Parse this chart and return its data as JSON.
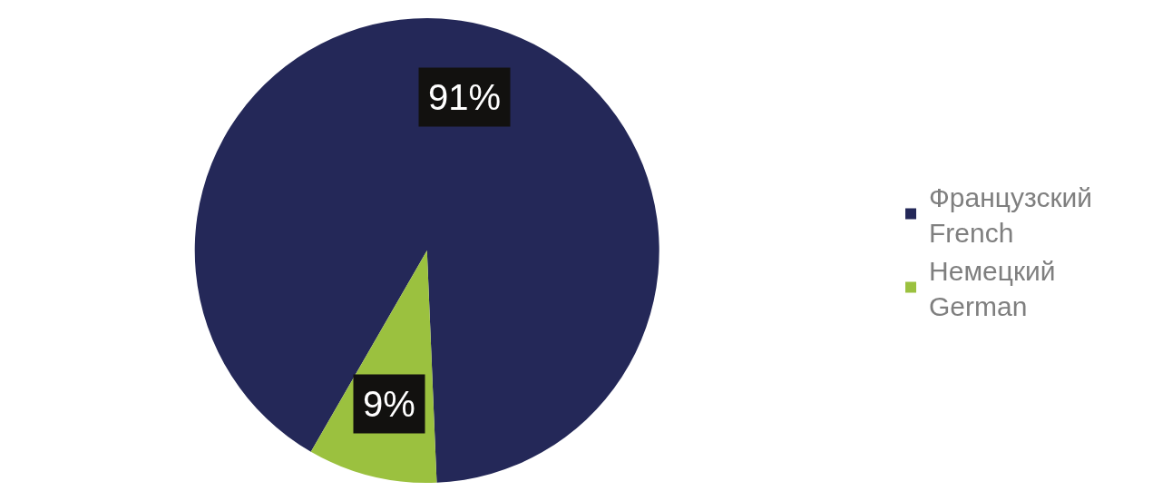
{
  "chart_data": {
    "type": "pie",
    "categories": [
      "Французский\nFrench",
      "Немецкий\nGerman"
    ],
    "values": [
      91,
      9
    ],
    "colors": [
      "#242858",
      "#9bc13f"
    ],
    "value_labels": [
      "91%",
      "9%"
    ],
    "legend": "right"
  }
}
